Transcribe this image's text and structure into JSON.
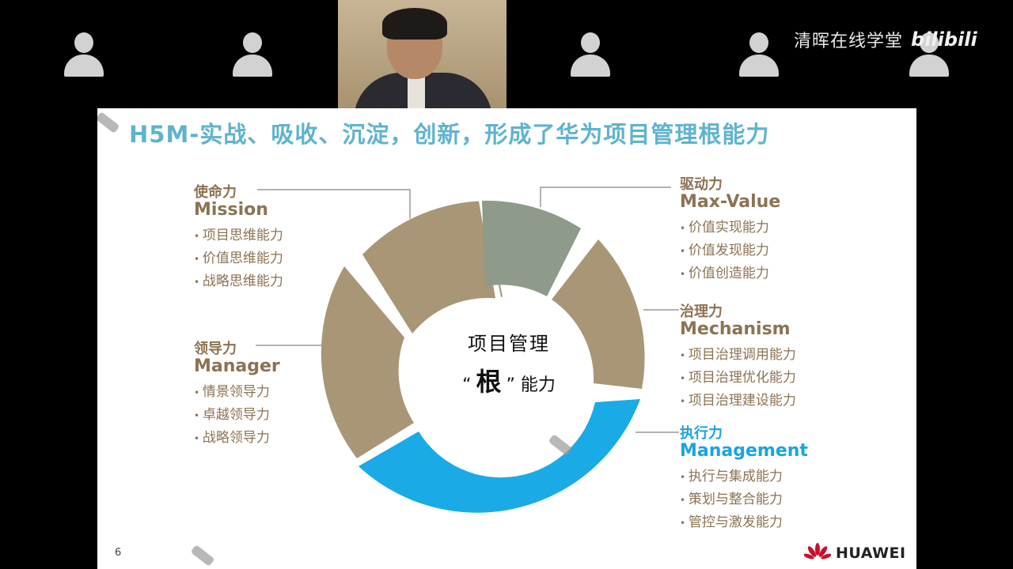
{
  "watermark": {
    "text": "清晖在线学堂",
    "logo": "bilibili"
  },
  "slide": {
    "title": "H5M-实战、吸收、沉淀，创新，形成了华为项目管理根能力",
    "center": {
      "line1": "项目管理",
      "quote_open": "“",
      "quote_word": "根",
      "quote_close": "”",
      "line2_suffix": "能力"
    },
    "mission": {
      "cn": "使命力",
      "en": "Mission",
      "items": [
        "项目思维能力",
        "价值思维能力",
        "战略思维能力"
      ]
    },
    "manager": {
      "cn": "领导力",
      "en": "Manager",
      "items": [
        "情景领导力",
        "卓越领导力",
        "战略领导力"
      ]
    },
    "maxvalue": {
      "cn": "驱动力",
      "en": "Max-Value",
      "items": [
        "价值实现能力",
        "价值发现能力",
        "价值创造能力"
      ]
    },
    "mechanism": {
      "cn": "治理力",
      "en": "Mechanism",
      "items": [
        "项目治理调用能力",
        "项目治理优化能力",
        "项目治理建设能力"
      ]
    },
    "management": {
      "cn": "执行力",
      "en": "Management",
      "items": [
        "执行与集成能力",
        "策划与整合能力",
        "管控与激发能力"
      ]
    },
    "page_number": "6",
    "brand": "HUAWEI"
  },
  "colors": {
    "tan": "#a89677",
    "gray": "#8e9a8a",
    "blue": "#1aaae6",
    "title": "#5fb3cf"
  }
}
